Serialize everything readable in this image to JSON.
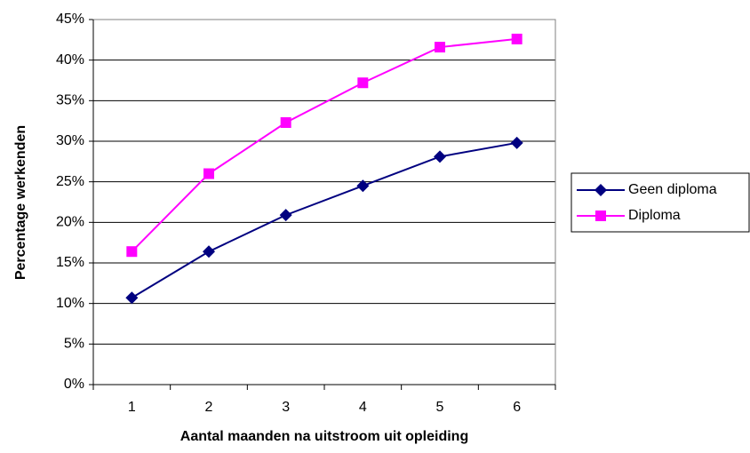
{
  "chart_data": {
    "type": "line",
    "x_label": "Aantal maanden na uitstroom uit opleiding",
    "y_label": "Percentage werkenden",
    "categories": [
      "1",
      "2",
      "3",
      "4",
      "5",
      "6"
    ],
    "series": [
      {
        "name": "Geen diploma",
        "color": "#000080",
        "marker": "diamond",
        "values": [
          10.7,
          16.4,
          20.9,
          24.5,
          28.1,
          29.8
        ]
      },
      {
        "name": "Diploma",
        "color": "#ff00ff",
        "marker": "square",
        "values": [
          16.4,
          26.0,
          32.3,
          37.2,
          41.6,
          42.6
        ]
      }
    ],
    "ylim": [
      0,
      45
    ],
    "yticks": [
      {
        "value": 0,
        "label": "0%"
      },
      {
        "value": 5,
        "label": "5%"
      },
      {
        "value": 10,
        "label": "10%"
      },
      {
        "value": 15,
        "label": "15%"
      },
      {
        "value": 20,
        "label": "20%"
      },
      {
        "value": 25,
        "label": "25%"
      },
      {
        "value": 30,
        "label": "30%"
      },
      {
        "value": 35,
        "label": "35%"
      },
      {
        "value": 40,
        "label": "40%"
      },
      {
        "value": 45,
        "label": "45%"
      }
    ],
    "grid": true,
    "legend": "right"
  }
}
